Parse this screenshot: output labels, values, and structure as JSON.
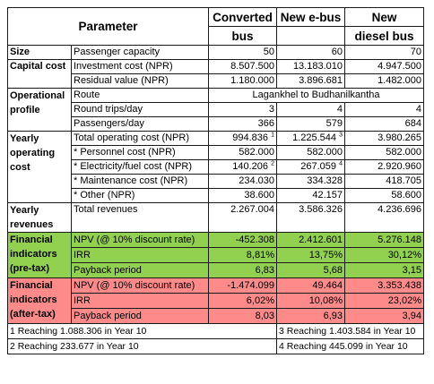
{
  "header": {
    "parameter": "Parameter",
    "converted_a": "Converted",
    "converted_b": "bus",
    "ebus": "New e-bus",
    "diesel_a": "New",
    "diesel_b": "diesel bus"
  },
  "size": {
    "group": "Size",
    "label": "Passenger capacity",
    "v1": "50",
    "v2": "60",
    "v3": "70"
  },
  "capital": {
    "group": "Capital cost",
    "rows": [
      {
        "label": "Investment cost (NPR)",
        "v1": "8.507.500",
        "v2": "13.183.010",
        "v3": "4.947.500"
      },
      {
        "label": "Residual value (NPR)",
        "v1": "1.180.000",
        "v2": "3.896.681",
        "v3": "1.482.000"
      }
    ]
  },
  "operational": {
    "group_a": "Operational",
    "group_b": "profile",
    "route_label": "Route",
    "route_value": "Lagankhel to Budhanilkantha",
    "rows": [
      {
        "label": "Round trips/day",
        "v1": "3",
        "v2": "4",
        "v3": "4"
      },
      {
        "label": "Passengers/day",
        "v1": "366",
        "v2": "579",
        "v3": "684"
      }
    ]
  },
  "opcost": {
    "group_a": "Yearly",
    "group_b": "operating",
    "group_c": "cost",
    "rows": [
      {
        "label": "Total operating cost (NPR)",
        "v1": "994.836",
        "n1": "1",
        "v2": "1.225.544",
        "n2": "3",
        "v3": "3.980.265"
      },
      {
        "label": "* Personnel cost (NPR)",
        "v1": "582.000",
        "n1": "",
        "v2": "582.000",
        "n2": "",
        "v3": "582.000"
      },
      {
        "label": "* Electricity/fuel cost (NPR)",
        "v1": "140.206",
        "n1": "2",
        "v2": "267.059",
        "n2": "4",
        "v3": "2.920.960"
      },
      {
        "label": "* Maintenance cost (NPR)",
        "v1": "234.030",
        "n1": "",
        "v2": "334.328",
        "n2": "",
        "v3": "418.705"
      },
      {
        "label": "* Other (NPR)",
        "v1": "38.600",
        "n1": "",
        "v2": "42.157",
        "n2": "",
        "v3": "58.600"
      }
    ]
  },
  "revenue": {
    "group_a": "Yearly",
    "group_b": "revenues",
    "label": "Total revenues",
    "v1": "2.267.004",
    "v2": "3.586.326",
    "v3": "4.236.696"
  },
  "pretax": {
    "group_a": "Financial",
    "group_b": "indicators",
    "group_c": "(pre-tax)",
    "rows": [
      {
        "label": "NPV (@ 10% discount rate)",
        "v1": "-452.308",
        "v2": "2.412.601",
        "v3": "5.276.148"
      },
      {
        "label": "IRR",
        "v1": "8,81%",
        "v2": "13,75%",
        "v3": "30,12%"
      },
      {
        "label": "Payback period",
        "v1": "6,83",
        "v2": "5,68",
        "v3": "3,15"
      }
    ]
  },
  "aftertax": {
    "group_a": "Financial",
    "group_b": "indicators",
    "group_c": "(after-tax)",
    "rows": [
      {
        "label": "NPV (@ 10% discount rate)",
        "v1": "-1.474.099",
        "v2": "49.464",
        "v3": "3.353.438"
      },
      {
        "label": "IRR",
        "v1": "6,02%",
        "v2": "10,08%",
        "v3": "23,02%"
      },
      {
        "label": "Payback period",
        "v1": "8,03",
        "v2": "6,93",
        "v3": "3,94"
      }
    ]
  },
  "footnotes": {
    "f1": "1 Reaching 1.088.306 in Year 10",
    "f2": "2 Reaching 233.677 in Year 10",
    "f3": "3 Reaching 1.403.584 in Year 10",
    "f4": "4 Reaching 445.099 in Year 10"
  },
  "colors": {
    "pretax_bg": "#92d050",
    "aftertax_bg": "#ff8a8a"
  }
}
